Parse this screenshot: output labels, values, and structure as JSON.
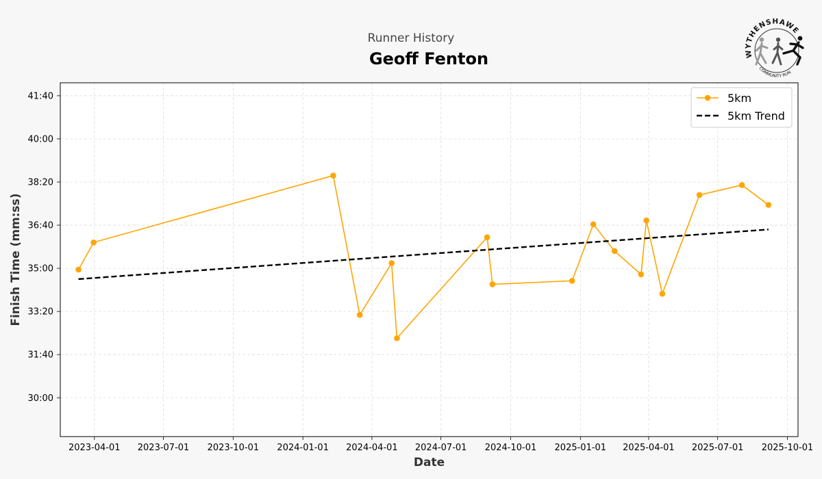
{
  "header": {
    "subtitle": "Runner History",
    "title": "Geoff Fenton"
  },
  "logo": {
    "top_text": "WYTHENSHAWE",
    "bottom_text": "COMMUNITY RUN"
  },
  "chart_data": {
    "type": "line",
    "xlabel": "Date",
    "ylabel": "Finish Time (mm:ss)",
    "xlim": [
      "2023-02-15",
      "2025-10-15"
    ],
    "ylim_seconds": [
      1710,
      2530
    ],
    "x_ticks": [
      "2023-04-01",
      "2023-07-01",
      "2023-10-01",
      "2024-01-01",
      "2024-04-01",
      "2024-07-01",
      "2024-10-01",
      "2025-01-01",
      "2025-04-01",
      "2025-07-01",
      "2025-10-01"
    ],
    "y_ticks": [
      {
        "seconds": 1800,
        "label": "30:00"
      },
      {
        "seconds": 1900,
        "label": "31:40"
      },
      {
        "seconds": 2000,
        "label": "33:20"
      },
      {
        "seconds": 2100,
        "label": "35:00"
      },
      {
        "seconds": 2200,
        "label": "36:40"
      },
      {
        "seconds": 2300,
        "label": "38:20"
      },
      {
        "seconds": 2400,
        "label": "40:00"
      },
      {
        "seconds": 2500,
        "label": "41:40"
      }
    ],
    "grid": true,
    "legend_position": "top-right",
    "series": [
      {
        "name": "5km",
        "color": "#ffa500",
        "style": "solid-marker",
        "points": [
          {
            "date": "2023-03-11",
            "time": "34:57"
          },
          {
            "date": "2023-03-31",
            "time": "36:00"
          },
          {
            "date": "2024-02-10",
            "time": "38:35"
          },
          {
            "date": "2024-03-16",
            "time": "33:12"
          },
          {
            "date": "2024-04-27",
            "time": "35:12"
          },
          {
            "date": "2024-05-04",
            "time": "32:18"
          },
          {
            "date": "2024-08-31",
            "time": "36:12"
          },
          {
            "date": "2024-09-07",
            "time": "34:23"
          },
          {
            "date": "2024-12-21",
            "time": "34:31"
          },
          {
            "date": "2025-01-18",
            "time": "36:42"
          },
          {
            "date": "2025-02-15",
            "time": "35:40"
          },
          {
            "date": "2025-03-22",
            "time": "34:46"
          },
          {
            "date": "2025-03-29",
            "time": "36:51"
          },
          {
            "date": "2025-04-19",
            "time": "34:01"
          },
          {
            "date": "2025-06-07",
            "time": "37:50"
          },
          {
            "date": "2025-08-02",
            "time": "38:13"
          },
          {
            "date": "2025-09-06",
            "time": "37:27"
          }
        ]
      },
      {
        "name": "5km Trend",
        "color": "#000000",
        "style": "dashed",
        "points": [
          {
            "date": "2023-03-11",
            "time": "34:35"
          },
          {
            "date": "2025-09-06",
            "time": "36:30"
          }
        ]
      }
    ]
  }
}
